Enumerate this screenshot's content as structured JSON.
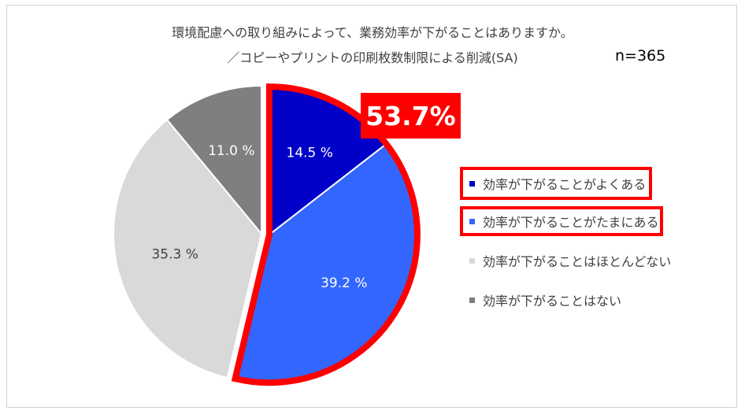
{
  "title_line1": "環境配慮への取り組みによって、業務効率が下がることはありますか。",
  "title_line2": "／コピーやプリントの印刷枚数制限による削減(SA)",
  "n_label": "n=365",
  "callout": "53.7%",
  "chart_data": {
    "type": "pie",
    "title": "環境配慮への取り組みによって、業務効率が下がることはありますか。／コピーやプリントの印刷枚数制限による削減(SA)",
    "slices": [
      {
        "label": "効率が下がることがよくある",
        "value": 14.5,
        "display": "14.5 %",
        "color": "#0000c8"
      },
      {
        "label": "効率が下がることがたまにある",
        "value": 39.2,
        "display": "39.2 %",
        "color": "#3366ff"
      },
      {
        "label": "効率が下がることはほとんどない",
        "value": 35.3,
        "display": "35.3 %",
        "color": "#d9d9d9"
      },
      {
        "label": "効率が下がることはない",
        "value": 11.0,
        "display": "11.0 %",
        "color": "#7f7f7f"
      }
    ],
    "legend_position": "right",
    "highlight": {
      "slices": [
        0,
        1
      ],
      "label": "53.7%",
      "color": "#ff0000"
    }
  }
}
